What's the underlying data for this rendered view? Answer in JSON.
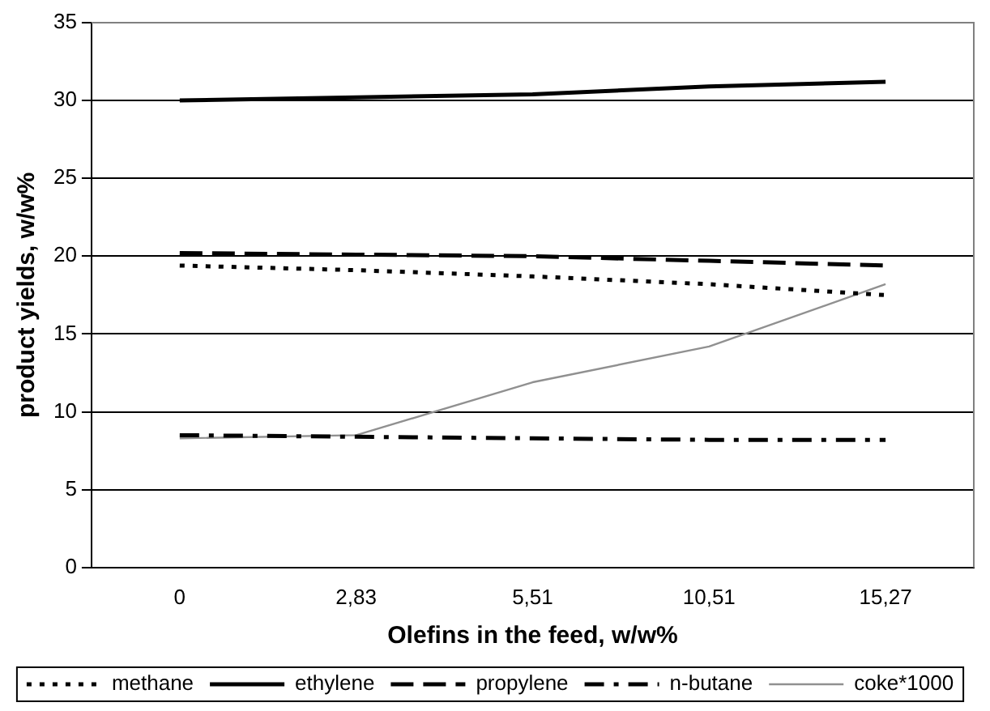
{
  "chart_data": {
    "type": "line",
    "xlabel": "Olefins in the feed, w/w%",
    "ylabel": "product yields, w/w%",
    "categories": [
      "0",
      "2,83",
      "5,51",
      "10,51",
      "15,27"
    ],
    "series": [
      {
        "name": "methane",
        "color": "#000000",
        "line_style": "dotted",
        "values": [
          19.4,
          19.1,
          18.7,
          18.2,
          17.5
        ]
      },
      {
        "name": "ethylene",
        "color": "#000000",
        "line_style": "solid",
        "values": [
          30.0,
          30.2,
          30.4,
          30.9,
          31.2
        ]
      },
      {
        "name": "propylene",
        "color": "#000000",
        "line_style": "dashed",
        "values": [
          20.2,
          20.1,
          20.0,
          19.7,
          19.4
        ]
      },
      {
        "name": "n-butane",
        "color": "#000000",
        "line_style": "dashdot",
        "values": [
          8.5,
          8.4,
          8.3,
          8.2,
          8.2
        ]
      },
      {
        "name": "coke*1000",
        "color": "#909090",
        "line_style": "solid",
        "values": [
          8.3,
          8.5,
          11.9,
          14.2,
          18.2
        ]
      }
    ],
    "ylim": [
      0,
      35
    ],
    "yticks": [
      0,
      5,
      10,
      15,
      20,
      25,
      30,
      35
    ],
    "grid": "y",
    "legend": "bottom",
    "marker": "none"
  }
}
